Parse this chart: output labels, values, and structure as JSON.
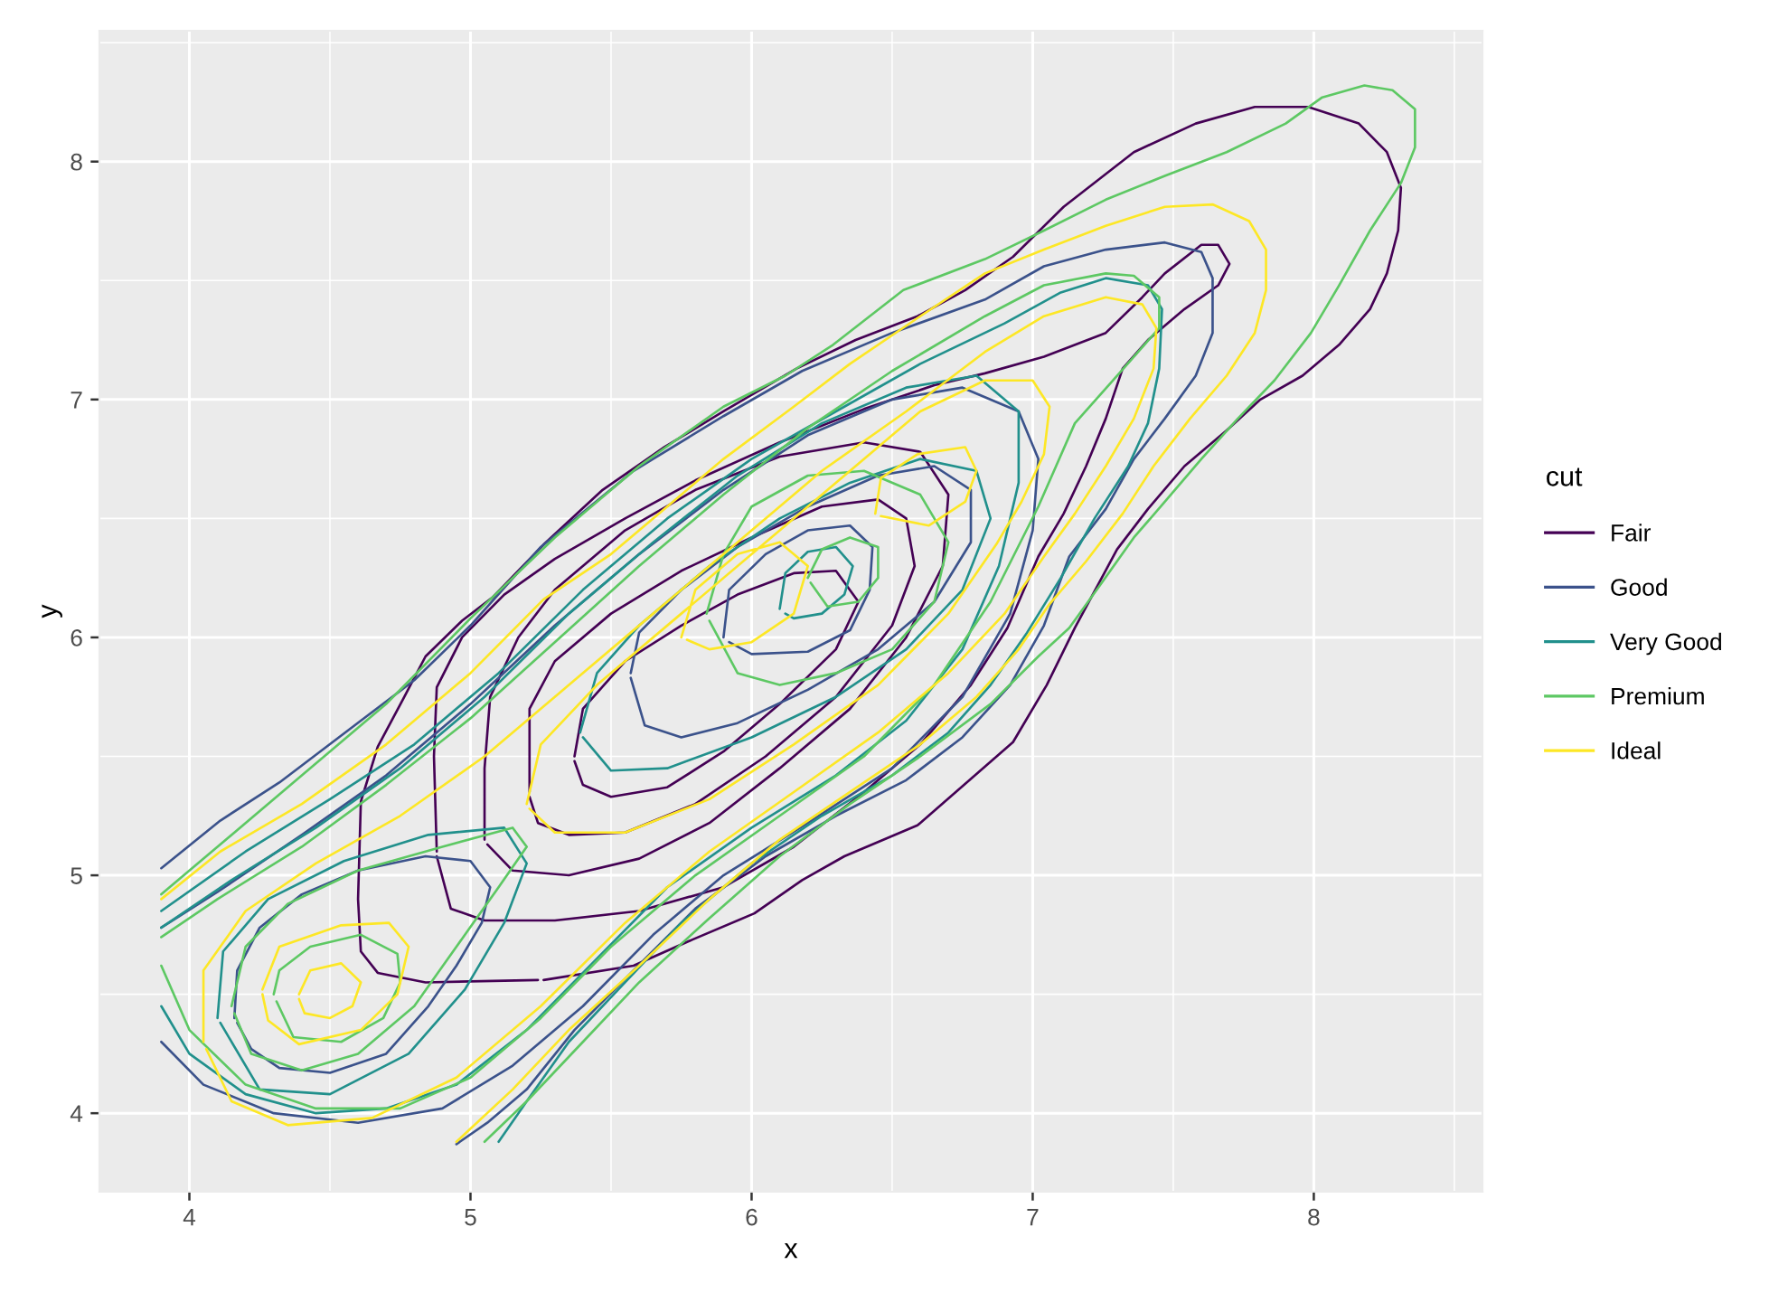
{
  "chart_data": {
    "type": "line",
    "xlabel": "x",
    "ylabel": "y",
    "legend_title": "cut",
    "legend": "right",
    "grid": true,
    "xlim": [
      3.68,
      8.6
    ],
    "ylim": [
      3.67,
      8.55
    ],
    "xticks": [
      4,
      5,
      6,
      7,
      8
    ],
    "yticks": [
      4,
      5,
      6,
      7,
      8
    ],
    "series": [
      {
        "name": "Fair",
        "color": "#440154",
        "x": [
          5.26,
          5.58,
          5.79,
          6.01,
          6.18,
          6.33,
          6.59,
          6.93,
          7.05,
          7.15,
          7.3,
          7.41,
          7.54,
          7.69,
          7.81,
          7.96,
          8.09,
          8.2,
          8.26,
          8.3,
          8.31,
          8.26,
          8.16,
          7.98,
          7.79,
          7.58,
          7.36,
          7.11,
          6.93,
          6.76,
          6.59,
          6.37,
          6.16,
          5.9,
          5.69,
          5.47,
          5.26,
          5.08,
          4.97,
          4.84,
          4.76,
          4.67,
          4.61,
          4.6,
          4.61,
          4.67,
          4.84,
          5.24,
          null,
          4.88,
          4.87,
          4.88,
          4.97,
          5.12,
          5.3,
          5.55,
          5.8,
          6.1,
          6.4,
          6.65,
          6.83,
          7.04,
          7.26,
          7.39,
          7.47,
          7.6,
          7.66,
          7.7,
          7.66,
          7.54,
          7.41,
          7.32,
          7.26,
          7.19,
          7.11,
          7.02,
          6.91,
          6.78,
          6.6,
          6.4,
          6.15,
          5.9,
          5.6,
          5.3,
          5.05,
          4.93,
          4.88,
          null,
          5.05,
          5.05,
          5.07,
          5.17,
          5.3,
          5.55,
          5.8,
          6.1,
          6.4,
          6.6,
          6.7,
          6.68,
          6.55,
          6.35,
          6.1,
          5.85,
          5.6,
          5.35,
          5.15,
          5.06,
          null,
          5.21,
          5.21,
          5.3,
          5.5,
          5.75,
          6.0,
          6.25,
          6.45,
          6.55,
          6.58,
          6.5,
          6.3,
          6.05,
          5.8,
          5.55,
          5.35,
          5.24,
          5.21,
          null,
          5.37,
          5.4,
          5.55,
          5.75,
          5.95,
          6.15,
          6.3,
          6.38,
          6.3,
          6.1,
          5.9,
          5.7,
          5.5,
          5.4,
          5.37
        ],
        "values": [
          4.56,
          4.62,
          4.73,
          4.84,
          4.98,
          5.08,
          5.21,
          5.56,
          5.8,
          6.04,
          6.37,
          6.54,
          6.72,
          6.87,
          7.0,
          7.1,
          7.23,
          7.38,
          7.53,
          7.71,
          7.89,
          8.04,
          8.16,
          8.23,
          8.23,
          8.16,
          8.04,
          7.81,
          7.6,
          7.46,
          7.35,
          7.25,
          7.13,
          6.95,
          6.8,
          6.62,
          6.39,
          6.17,
          6.07,
          5.92,
          5.74,
          5.54,
          5.31,
          4.9,
          4.68,
          4.59,
          4.55,
          4.56,
          null,
          5.1,
          5.5,
          5.79,
          6.0,
          6.18,
          6.33,
          6.5,
          6.66,
          6.82,
          6.96,
          7.06,
          7.11,
          7.18,
          7.28,
          7.43,
          7.53,
          7.65,
          7.65,
          7.57,
          7.48,
          7.38,
          7.25,
          7.13,
          6.92,
          6.72,
          6.52,
          6.34,
          6.04,
          5.8,
          5.55,
          5.35,
          5.12,
          4.95,
          4.85,
          4.81,
          4.81,
          4.86,
          5.08,
          null,
          5.15,
          5.45,
          5.75,
          6.0,
          6.2,
          6.45,
          6.62,
          6.76,
          6.82,
          6.78,
          6.6,
          6.3,
          6.0,
          5.7,
          5.45,
          5.22,
          5.07,
          5.0,
          5.02,
          5.13,
          null,
          5.35,
          5.7,
          5.9,
          6.1,
          6.28,
          6.42,
          6.55,
          6.58,
          6.5,
          6.3,
          6.05,
          5.75,
          5.5,
          5.3,
          5.18,
          5.17,
          5.22,
          5.33,
          null,
          5.5,
          5.7,
          5.9,
          6.05,
          6.18,
          6.27,
          6.28,
          6.15,
          5.95,
          5.72,
          5.52,
          5.37,
          5.33,
          5.38,
          5.48
        ]
      },
      {
        "name": "Good",
        "color": "#3b528b",
        "x": [
          3.9,
          4.11,
          4.32,
          4.61,
          4.8,
          5.0,
          5.25,
          5.58,
          5.9,
          6.18,
          6.5,
          6.83,
          7.04,
          7.26,
          7.47,
          7.6,
          7.64,
          7.64,
          7.58,
          7.47,
          7.36,
          7.26,
          7.13,
          7.04,
          6.92,
          6.75,
          6.55,
          6.3,
          6.05,
          5.8,
          5.58,
          5.37,
          5.2,
          5.06,
          4.95,
          null,
          3.9,
          4.05,
          4.3,
          4.6,
          4.9,
          5.15,
          5.4,
          5.65,
          5.9,
          6.2,
          6.5,
          6.75,
          6.92,
          7.0,
          7.02,
          6.95,
          6.75,
          6.5,
          6.2,
          5.9,
          5.6,
          5.3,
          5.0,
          4.7,
          4.4,
          4.1,
          3.9,
          null,
          4.16,
          4.17,
          4.25,
          4.4,
          4.6,
          4.84,
          5.0,
          5.07,
          5.04,
          4.95,
          4.85,
          4.7,
          4.5,
          4.32,
          4.22,
          4.17,
          null,
          5.57,
          5.6,
          5.75,
          5.95,
          6.2,
          6.45,
          6.65,
          6.78,
          6.78,
          6.65,
          6.45,
          6.2,
          5.95,
          5.75,
          5.62,
          5.57,
          null,
          5.9,
          5.92,
          6.05,
          6.2,
          6.35,
          6.43,
          6.42,
          6.35,
          6.2,
          6.0,
          5.92
        ],
        "values": [
          5.03,
          5.23,
          5.39,
          5.65,
          5.82,
          6.05,
          6.38,
          6.7,
          6.93,
          7.12,
          7.28,
          7.42,
          7.56,
          7.63,
          7.66,
          7.62,
          7.51,
          7.28,
          7.1,
          6.92,
          6.75,
          6.54,
          6.34,
          6.05,
          5.8,
          5.58,
          5.4,
          5.25,
          5.08,
          4.86,
          4.6,
          4.35,
          4.1,
          3.96,
          3.87,
          null,
          4.3,
          4.12,
          4.0,
          3.96,
          4.02,
          4.2,
          4.45,
          4.75,
          5.0,
          5.22,
          5.45,
          5.75,
          6.1,
          6.45,
          6.75,
          6.95,
          7.05,
          7.0,
          6.85,
          6.62,
          6.35,
          6.05,
          5.72,
          5.42,
          5.17,
          4.93,
          4.78,
          null,
          4.4,
          4.6,
          4.78,
          4.92,
          5.02,
          5.08,
          5.06,
          4.95,
          4.8,
          4.62,
          4.45,
          4.25,
          4.17,
          4.19,
          4.27,
          4.38,
          null,
          5.85,
          6.02,
          6.2,
          6.38,
          6.55,
          6.68,
          6.72,
          6.62,
          6.4,
          6.15,
          5.95,
          5.78,
          5.64,
          5.58,
          5.63,
          5.83,
          null,
          6.0,
          6.2,
          6.35,
          6.45,
          6.47,
          6.38,
          6.2,
          6.03,
          5.94,
          5.93,
          5.98
        ]
      },
      {
        "name": "Very Good",
        "color": "#21908c",
        "x": [
          3.9,
          4.2,
          4.5,
          4.8,
          5.1,
          5.4,
          5.7,
          6.0,
          6.3,
          6.6,
          6.9,
          7.1,
          7.26,
          7.41,
          7.46,
          7.45,
          7.41,
          7.34,
          7.22,
          7.1,
          6.98,
          6.85,
          6.7,
          6.5,
          6.25,
          6.0,
          5.75,
          5.55,
          5.35,
          5.2,
          5.1,
          null,
          3.9,
          4.0,
          4.2,
          4.45,
          4.7,
          4.95,
          5.2,
          5.45,
          5.7,
          6.0,
          6.3,
          6.55,
          6.75,
          6.88,
          6.95,
          6.95,
          6.8,
          6.55,
          6.25,
          5.95,
          5.65,
          5.35,
          5.05,
          4.75,
          4.45,
          4.15,
          3.9,
          null,
          4.1,
          4.12,
          4.28,
          4.55,
          4.85,
          5.12,
          5.2,
          5.12,
          4.98,
          4.78,
          4.5,
          4.25,
          4.11,
          null,
          5.39,
          5.45,
          5.6,
          5.85,
          6.1,
          6.35,
          6.6,
          6.8,
          6.85,
          6.75,
          6.55,
          6.3,
          6.0,
          5.7,
          5.5,
          5.4,
          null,
          6.1,
          6.12,
          6.2,
          6.3,
          6.36,
          6.33,
          6.25,
          6.15,
          6.12
        ],
        "values": [
          4.85,
          5.1,
          5.32,
          5.55,
          5.85,
          6.2,
          6.5,
          6.75,
          6.95,
          7.15,
          7.32,
          7.45,
          7.51,
          7.48,
          7.38,
          7.13,
          6.9,
          6.72,
          6.5,
          6.25,
          6.02,
          5.8,
          5.6,
          5.42,
          5.25,
          5.05,
          4.8,
          4.55,
          4.3,
          4.05,
          3.88,
          null,
          4.45,
          4.25,
          4.08,
          4.0,
          4.02,
          4.12,
          4.35,
          4.65,
          4.95,
          5.2,
          5.42,
          5.65,
          5.95,
          6.3,
          6.65,
          6.95,
          7.1,
          7.05,
          6.9,
          6.68,
          6.4,
          6.1,
          5.75,
          5.45,
          5.2,
          4.98,
          4.78,
          null,
          4.4,
          4.68,
          4.9,
          5.06,
          5.17,
          5.2,
          5.05,
          4.8,
          4.52,
          4.25,
          4.08,
          4.1,
          4.38,
          null,
          5.6,
          5.85,
          6.05,
          6.3,
          6.5,
          6.65,
          6.75,
          6.7,
          6.5,
          6.2,
          5.95,
          5.75,
          5.58,
          5.45,
          5.44,
          5.58,
          null,
          6.12,
          6.27,
          6.36,
          6.38,
          6.3,
          6.18,
          6.1,
          6.08,
          6.1
        ]
      },
      {
        "name": "Premium",
        "color": "#5dc863",
        "x": [
          3.9,
          4.1,
          4.4,
          4.7,
          5.0,
          5.3,
          5.6,
          5.9,
          6.12,
          6.29,
          6.54,
          6.83,
          7.04,
          7.26,
          7.47,
          7.69,
          7.9,
          8.03,
          8.18,
          8.28,
          8.36,
          8.36,
          8.31,
          8.2,
          8.09,
          7.99,
          7.86,
          7.73,
          7.6,
          7.47,
          7.36,
          7.24,
          7.13,
          7.02,
          6.85,
          6.6,
          6.35,
          6.1,
          5.85,
          5.6,
          5.4,
          5.2,
          5.05,
          null,
          3.9,
          4.0,
          4.2,
          4.45,
          4.75,
          5.0,
          5.25,
          5.5,
          5.8,
          6.1,
          6.4,
          6.65,
          6.85,
          7.02,
          7.15,
          7.3,
          7.45,
          7.45,
          7.36,
          7.26,
          7.04,
          6.83,
          6.5,
          6.2,
          5.9,
          5.6,
          5.3,
          5.0,
          4.7,
          4.4,
          4.1,
          3.9,
          null,
          4.15,
          4.2,
          4.35,
          4.6,
          4.9,
          5.15,
          5.2,
          5.1,
          4.95,
          4.8,
          4.6,
          4.4,
          4.22,
          4.16,
          null,
          4.3,
          4.32,
          4.43,
          4.61,
          4.74,
          4.75,
          4.69,
          4.54,
          4.37,
          4.31,
          null,
          5.84,
          5.9,
          6.0,
          6.2,
          6.4,
          6.6,
          6.7,
          6.65,
          6.5,
          6.3,
          6.1,
          5.95,
          5.85,
          null,
          6.2,
          6.25,
          6.35,
          6.45,
          6.45,
          6.38,
          6.27,
          6.21
        ],
        "values": [
          4.92,
          5.12,
          5.42,
          5.72,
          6.08,
          6.42,
          6.72,
          6.97,
          7.1,
          7.23,
          7.46,
          7.59,
          7.71,
          7.84,
          7.94,
          8.04,
          8.16,
          8.27,
          8.32,
          8.3,
          8.22,
          8.06,
          7.91,
          7.71,
          7.48,
          7.28,
          7.08,
          6.92,
          6.75,
          6.57,
          6.42,
          6.22,
          6.04,
          5.92,
          5.72,
          5.5,
          5.3,
          5.08,
          4.82,
          4.55,
          4.3,
          4.05,
          3.88,
          null,
          4.62,
          4.35,
          4.12,
          4.02,
          4.02,
          4.15,
          4.4,
          4.7,
          5.0,
          5.25,
          5.5,
          5.8,
          6.15,
          6.55,
          6.9,
          7.1,
          7.3,
          7.43,
          7.52,
          7.53,
          7.48,
          7.35,
          7.12,
          6.88,
          6.6,
          6.3,
          5.98,
          5.66,
          5.38,
          5.12,
          4.9,
          4.74,
          null,
          4.45,
          4.7,
          4.88,
          5.02,
          5.12,
          5.2,
          5.12,
          4.95,
          4.7,
          4.45,
          4.25,
          4.18,
          4.25,
          4.42,
          null,
          4.5,
          4.6,
          4.7,
          4.75,
          4.67,
          4.55,
          4.4,
          4.3,
          4.32,
          4.47,
          null,
          6.1,
          6.35,
          6.55,
          6.68,
          6.7,
          6.6,
          6.4,
          6.15,
          5.95,
          5.85,
          5.8,
          5.85,
          6.07,
          null,
          6.25,
          6.37,
          6.42,
          6.38,
          6.25,
          6.15,
          6.13,
          6.23
        ]
      },
      {
        "name": "Ideal",
        "color": "#fde725",
        "x": [
          3.9,
          4.11,
          4.4,
          4.7,
          5.0,
          5.26,
          5.5,
          5.7,
          5.9,
          6.15,
          6.35,
          6.6,
          6.83,
          7.04,
          7.26,
          7.47,
          7.64,
          7.77,
          7.83,
          7.83,
          7.79,
          7.69,
          7.56,
          7.43,
          7.32,
          7.19,
          7.06,
          6.95,
          6.8,
          6.6,
          6.35,
          6.1,
          5.85,
          5.6,
          5.35,
          5.15,
          4.95,
          null,
          4.05,
          4.05,
          4.2,
          4.45,
          4.75,
          5.05,
          5.35,
          5.65,
          5.95,
          6.25,
          6.55,
          6.83,
          7.04,
          7.26,
          7.39,
          7.44,
          7.43,
          7.36,
          7.26,
          7.15,
          7.04,
          6.9,
          6.7,
          6.45,
          6.15,
          5.85,
          5.55,
          5.25,
          4.95,
          4.65,
          4.35,
          4.15,
          4.06,
          null,
          5.2,
          5.25,
          5.45,
          5.75,
          6.05,
          6.35,
          6.6,
          6.83,
          7.0,
          7.06,
          7.04,
          6.96,
          6.87,
          6.7,
          6.45,
          6.15,
          5.85,
          5.55,
          5.3,
          5.21,
          null,
          6.44,
          6.46,
          6.59,
          6.76,
          6.8,
          6.76,
          6.63,
          6.46,
          null,
          4.26,
          4.32,
          4.54,
          4.71,
          4.78,
          4.74,
          4.61,
          4.39,
          4.28,
          4.26,
          null,
          4.39,
          4.43,
          4.54,
          4.61,
          4.58,
          4.5,
          4.41,
          4.39,
          null,
          5.75,
          5.8,
          5.95,
          6.1,
          6.2,
          6.15,
          6.0,
          5.85,
          5.77
        ],
        "values": [
          4.9,
          5.1,
          5.3,
          5.55,
          5.85,
          6.16,
          6.35,
          6.55,
          6.75,
          6.97,
          7.15,
          7.35,
          7.53,
          7.63,
          7.73,
          7.81,
          7.82,
          7.75,
          7.63,
          7.46,
          7.28,
          7.1,
          6.92,
          6.72,
          6.52,
          6.32,
          6.14,
          5.95,
          5.75,
          5.55,
          5.35,
          5.15,
          4.9,
          4.62,
          4.35,
          4.1,
          3.88,
          null,
          4.3,
          4.6,
          4.85,
          5.05,
          5.25,
          5.5,
          5.8,
          6.1,
          6.4,
          6.7,
          6.95,
          7.2,
          7.35,
          7.43,
          7.4,
          7.3,
          7.13,
          6.92,
          6.72,
          6.52,
          6.34,
          6.1,
          5.85,
          5.6,
          5.35,
          5.1,
          4.8,
          4.45,
          4.15,
          3.98,
          3.95,
          4.05,
          4.27,
          null,
          5.3,
          5.55,
          5.8,
          6.1,
          6.4,
          6.7,
          6.95,
          7.08,
          7.08,
          6.97,
          6.77,
          6.57,
          6.39,
          6.1,
          5.8,
          5.55,
          5.32,
          5.18,
          5.18,
          5.28,
          null,
          6.52,
          6.67,
          6.77,
          6.8,
          6.7,
          6.57,
          6.47,
          6.51,
          null,
          4.52,
          4.7,
          4.79,
          4.8,
          4.7,
          4.5,
          4.35,
          4.29,
          4.39,
          4.5,
          null,
          4.5,
          4.6,
          4.63,
          4.55,
          4.45,
          4.4,
          4.42,
          4.48,
          null,
          6.0,
          6.2,
          6.35,
          6.4,
          6.3,
          6.1,
          5.98,
          5.95,
          5.99
        ]
      }
    ]
  }
}
